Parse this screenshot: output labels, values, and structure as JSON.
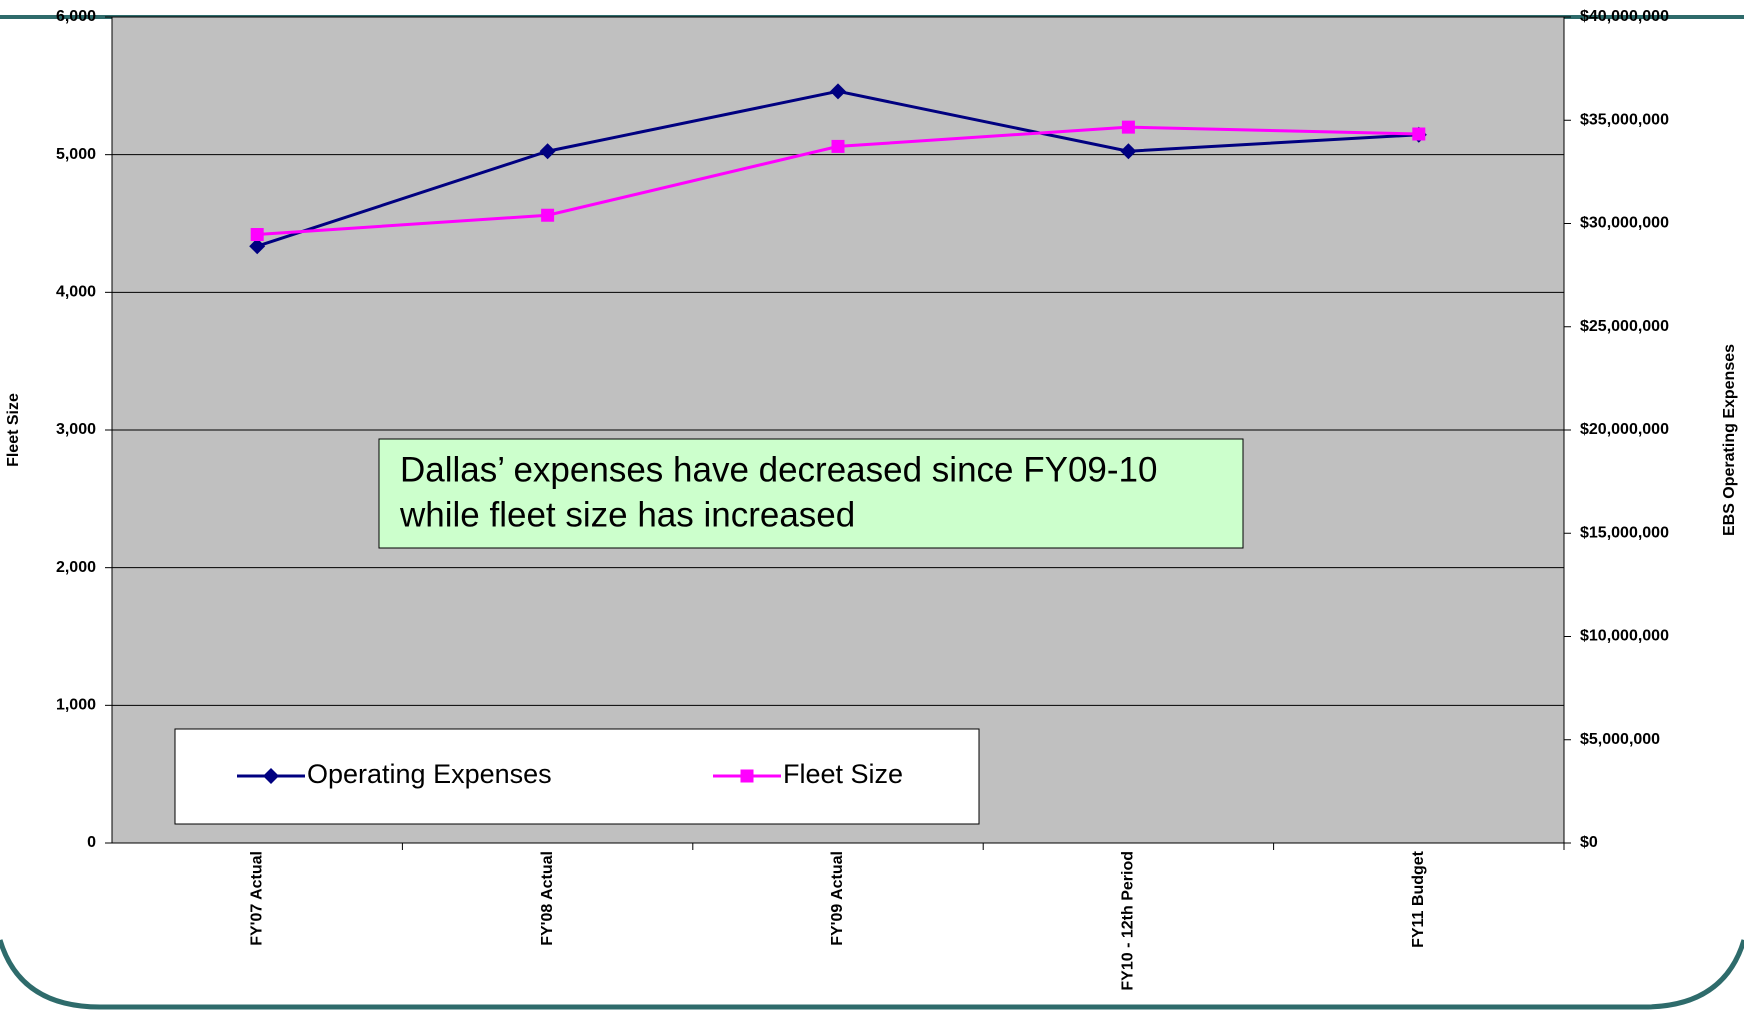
{
  "chart_data": {
    "type": "line",
    "categories": [
      "FY'07 Actual",
      "FY'08 Actual",
      "FY'09 Actual",
      "FY10 - 12th Period",
      "FY11 Budget"
    ],
    "series": [
      {
        "name": "Operating Expenses",
        "color": "#000080",
        "marker": "diamond",
        "axis": "y2",
        "values": [
          28900000,
          33500000,
          36400000,
          33500000,
          34300000
        ]
      },
      {
        "name": "Fleet Size",
        "color": "#ff00ff",
        "marker": "square",
        "values": [
          4420,
          4560,
          5060,
          5200,
          5150
        ]
      }
    ],
    "ylabel": "Fleet Size",
    "y2label": "EBS Operating Expenses",
    "ylim": [
      0,
      6000
    ],
    "yticks": [
      0,
      {
        "value": 1000,
        "label": "1,000"
      },
      {
        "value": 2000,
        "label": "2,000"
      },
      {
        "value": 3000,
        "label": "3,000"
      },
      {
        "value": 4000,
        "label": "4,000"
      },
      {
        "value": 5000,
        "label": "5,000"
      },
      {
        "value": 6000,
        "label": "6,000"
      }
    ],
    "y2lim": [
      0,
      40000000
    ],
    "y2ticks": [
      {
        "value": 0,
        "label": "$0"
      },
      {
        "value": 5000000,
        "label": "$5,000,000"
      },
      {
        "value": 10000000,
        "label": "$10,000,000"
      },
      {
        "value": 15000000,
        "label": "$15,000,000"
      },
      {
        "value": 20000000,
        "label": "$20,000,000"
      },
      {
        "value": 25000000,
        "label": "$25,000,000"
      },
      {
        "value": 30000000,
        "label": "$30,000,000"
      },
      {
        "value": 35000000,
        "label": "$35,000,000"
      },
      {
        "value": 40000000,
        "label": "$40,000,000"
      }
    ],
    "grid": true,
    "annotation": [
      "Dallas’ expenses have decreased since FY09-10",
      "while fleet size has increased"
    ]
  }
}
